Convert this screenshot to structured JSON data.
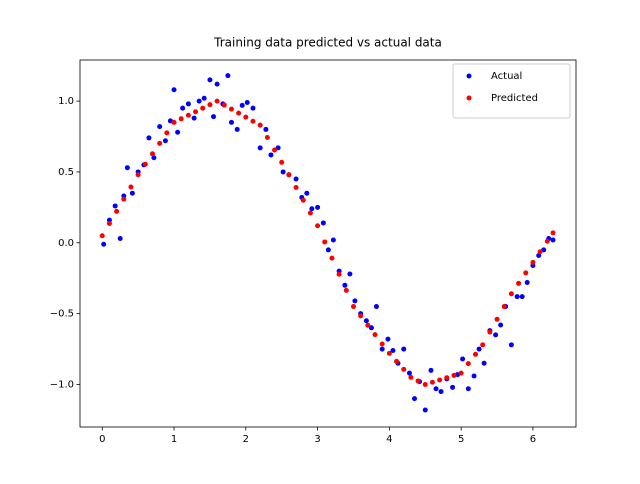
{
  "chart_data": {
    "type": "scatter",
    "title": "Training data predicted vs actual data",
    "xlim": [
      -0.31,
      6.6
    ],
    "ylim": [
      -1.3,
      1.29
    ],
    "xticks": [
      0,
      1,
      2,
      3,
      4,
      5,
      6
    ],
    "yticks": [
      {
        "value": -1.0,
        "label": "−1.0"
      },
      {
        "value": -0.5,
        "label": "−0.5"
      },
      {
        "value": 0.0,
        "label": "0.0"
      },
      {
        "value": 0.5,
        "label": "0.5"
      },
      {
        "value": 1.0,
        "label": "1.0"
      }
    ],
    "legend": "upper right",
    "series": [
      {
        "name": "Actual",
        "color": "#0000ff",
        "x": [
          0.02,
          0.1,
          0.18,
          0.25,
          0.3,
          0.35,
          0.42,
          0.5,
          0.58,
          0.65,
          0.72,
          0.8,
          0.88,
          0.95,
          1.0,
          1.05,
          1.12,
          1.2,
          1.28,
          1.35,
          1.42,
          1.5,
          1.55,
          1.6,
          1.68,
          1.75,
          1.8,
          1.88,
          1.95,
          2.02,
          2.1,
          2.2,
          2.28,
          2.35,
          2.45,
          2.52,
          2.6,
          2.7,
          2.78,
          2.85,
          2.92,
          3.0,
          3.08,
          3.15,
          3.22,
          3.3,
          3.38,
          3.45,
          3.52,
          3.6,
          3.68,
          3.75,
          3.82,
          3.9,
          3.98,
          4.05,
          4.12,
          4.2,
          4.28,
          4.35,
          4.42,
          4.5,
          4.58,
          4.65,
          4.72,
          4.8,
          4.88,
          4.95,
          5.02,
          5.1,
          5.18,
          5.25,
          5.32,
          5.4,
          5.48,
          5.55,
          5.62,
          5.7,
          5.78,
          5.85,
          5.92,
          6.0,
          6.08,
          6.15,
          6.22,
          6.28
        ],
        "values": [
          -0.01,
          0.16,
          0.26,
          0.03,
          0.33,
          0.53,
          0.35,
          0.5,
          0.55,
          0.74,
          0.6,
          0.82,
          0.72,
          0.86,
          1.08,
          0.78,
          0.95,
          0.98,
          0.88,
          1.0,
          1.02,
          1.15,
          0.89,
          1.12,
          0.98,
          1.18,
          0.85,
          0.8,
          0.97,
          0.99,
          0.95,
          0.67,
          0.8,
          0.62,
          0.67,
          0.5,
          0.48,
          0.45,
          0.32,
          0.35,
          0.24,
          0.25,
          0.14,
          -0.05,
          0.02,
          -0.2,
          -0.3,
          -0.22,
          -0.41,
          -0.5,
          -0.55,
          -0.6,
          -0.45,
          -0.75,
          -0.68,
          -0.76,
          -0.85,
          -0.75,
          -0.92,
          -1.1,
          -0.98,
          -1.18,
          -0.9,
          -1.03,
          -1.05,
          -0.96,
          -1.02,
          -0.93,
          -0.82,
          -1.03,
          -0.94,
          -0.75,
          -0.85,
          -0.62,
          -0.65,
          -0.58,
          -0.45,
          -0.72,
          -0.38,
          -0.38,
          -0.28,
          -0.16,
          -0.09,
          -0.05,
          0.03,
          0.02
        ]
      },
      {
        "name": "Predicted",
        "color": "#ff0000",
        "x": [
          0,
          0.1,
          0.2,
          0.3,
          0.4,
          0.5,
          0.6,
          0.7,
          0.8,
          0.9,
          1.0,
          1.1,
          1.2,
          1.3,
          1.4,
          1.5,
          1.6,
          1.7,
          1.8,
          1.9,
          2.0,
          2.1,
          2.2,
          2.3,
          2.4,
          2.5,
          2.6,
          2.7,
          2.8,
          2.9,
          3.0,
          3.1,
          3.2,
          3.3,
          3.4,
          3.5,
          3.6,
          3.7,
          3.8,
          3.9,
          4.0,
          4.1,
          4.2,
          4.3,
          4.4,
          4.5,
          4.6,
          4.7,
          4.8,
          4.9,
          5.0,
          5.1,
          5.2,
          5.3,
          5.4,
          5.5,
          5.6,
          5.7,
          5.8,
          5.9,
          6.0,
          6.1,
          6.2,
          6.28
        ],
        "values": [
          0.05,
          0.136,
          0.222,
          0.308,
          0.394,
          0.48,
          0.554,
          0.628,
          0.702,
          0.776,
          0.85,
          0.875,
          0.9,
          0.925,
          0.95,
          0.975,
          1.0,
          0.972,
          0.943,
          0.915,
          0.887,
          0.858,
          0.83,
          0.743,
          0.655,
          0.568,
          0.48,
          0.39,
          0.3,
          0.21,
          0.12,
          0.006,
          -0.108,
          -0.222,
          -0.336,
          -0.45,
          -0.516,
          -0.582,
          -0.648,
          -0.714,
          -0.78,
          -0.837,
          -0.893,
          -0.95,
          -0.975,
          -1.0,
          -0.984,
          -0.968,
          -0.952,
          -0.936,
          -0.92,
          -0.853,
          -0.787,
          -0.72,
          -0.63,
          -0.54,
          -0.45,
          -0.36,
          -0.286,
          -0.212,
          -0.138,
          -0.063,
          0.011,
          0.07
        ]
      }
    ]
  }
}
